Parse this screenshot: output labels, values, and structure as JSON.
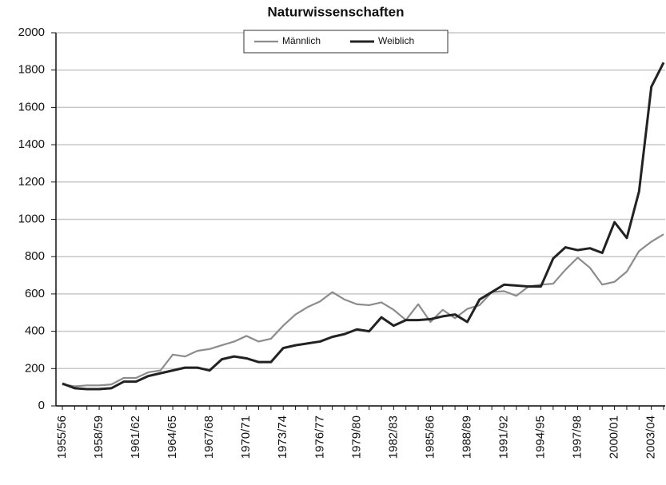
{
  "chart_data": {
    "type": "line",
    "title": "Naturwissenschaften",
    "categories": [
      "1955/56",
      null,
      null,
      "1958/59",
      null,
      null,
      "1961/62",
      null,
      null,
      "1964/65",
      null,
      null,
      "1967/68",
      null,
      null,
      "1970/71",
      null,
      null,
      "1973/74",
      null,
      null,
      "1976/77",
      null,
      null,
      "1979/80",
      null,
      null,
      "1982/83",
      null,
      null,
      "1985/86",
      null,
      null,
      "1988/89",
      null,
      null,
      "1991/92",
      null,
      null,
      "1994/95",
      null,
      null,
      "1997/98",
      null,
      null,
      "2000/01",
      null,
      null,
      "2003/04",
      null
    ],
    "series": [
      {
        "name": "Männlich",
        "color": "#8c8c8c",
        "values": [
          115,
          105,
          110,
          110,
          115,
          150,
          150,
          180,
          190,
          275,
          265,
          295,
          305,
          325,
          345,
          375,
          345,
          360,
          430,
          490,
          530,
          560,
          610,
          570,
          545,
          540,
          555,
          515,
          460,
          545,
          450,
          515,
          470,
          520,
          540,
          610,
          615,
          590,
          640,
          650,
          655,
          730,
          795,
          740,
          650,
          665,
          720,
          830,
          880,
          920
        ]
      },
      {
        "name": "Weiblich",
        "color": "#222222",
        "values": [
          120,
          95,
          90,
          90,
          95,
          130,
          130,
          160,
          175,
          190,
          205,
          205,
          190,
          250,
          265,
          255,
          235,
          235,
          310,
          325,
          335,
          345,
          370,
          385,
          410,
          400,
          475,
          430,
          460,
          460,
          465,
          480,
          490,
          450,
          570,
          610,
          650,
          645,
          640,
          640,
          790,
          850,
          835,
          845,
          820,
          985,
          900,
          1150,
          1710,
          1840
        ]
      }
    ],
    "ylim": [
      0,
      2000
    ],
    "yticks": [
      0,
      200,
      400,
      600,
      800,
      1000,
      1200,
      1400,
      1600,
      1800,
      2000
    ],
    "grid": true,
    "legend": "top"
  }
}
